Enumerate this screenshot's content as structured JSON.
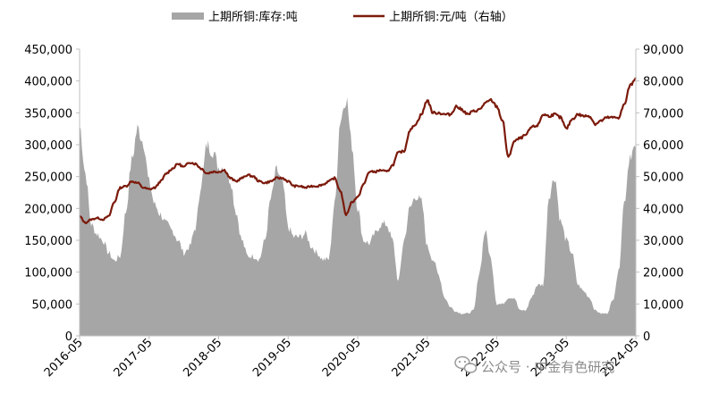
{
  "chart_data": {
    "type": "area",
    "legend": {
      "placement": "top",
      "inventory_label": "上期所铜:库存:吨",
      "price_label": "上期所铜:元/吨（右轴）"
    },
    "left_axis": {
      "range": [
        0,
        450000
      ],
      "tick_labels": [
        "0",
        "50,000",
        "100,000",
        "150,000",
        "200,000",
        "250,000",
        "300,000",
        "350,000",
        "400,000",
        "450,000"
      ]
    },
    "right_axis": {
      "range": [
        0,
        90000
      ],
      "tick_labels": [
        "0",
        "10,000",
        "20,000",
        "30,000",
        "40,000",
        "50,000",
        "60,000",
        "70,000",
        "80,000",
        "90,000"
      ]
    },
    "x_axis": {
      "range": [
        "2016-05",
        "2024-05"
      ],
      "tick_labels": [
        "2016-05",
        "2017-05",
        "2018-05",
        "2019-05",
        "2020-05",
        "2021-05",
        "2022-05",
        "2023-05",
        "2024-05"
      ]
    },
    "colors": {
      "inventory": "#a6a6a6",
      "price": "#7b1a0b"
    },
    "series": [
      {
        "name": "上期所铜:库存:吨",
        "axis": "left",
        "points": [
          [
            "2016-05",
            330000
          ],
          [
            "2016-06",
            255000
          ],
          [
            "2016-07",
            175000
          ],
          [
            "2016-08",
            160000
          ],
          [
            "2016-09",
            150000
          ],
          [
            "2016-10",
            130000
          ],
          [
            "2016-11",
            118000
          ],
          [
            "2016-12",
            125000
          ],
          [
            "2017-01",
            195000
          ],
          [
            "2017-02",
            275000
          ],
          [
            "2017-03",
            325000
          ],
          [
            "2017-04",
            305000
          ],
          [
            "2017-05",
            240000
          ],
          [
            "2017-06",
            205000
          ],
          [
            "2017-07",
            190000
          ],
          [
            "2017-08",
            175000
          ],
          [
            "2017-09",
            165000
          ],
          [
            "2017-10",
            150000
          ],
          [
            "2017-11",
            130000
          ],
          [
            "2017-12",
            140000
          ],
          [
            "2018-01",
            170000
          ],
          [
            "2018-02",
            240000
          ],
          [
            "2018-03",
            300000
          ],
          [
            "2018-04",
            290000
          ],
          [
            "2018-05",
            265000
          ],
          [
            "2018-06",
            265000
          ],
          [
            "2018-07",
            245000
          ],
          [
            "2018-08",
            195000
          ],
          [
            "2018-09",
            150000
          ],
          [
            "2018-10",
            125000
          ],
          [
            "2018-11",
            125000
          ],
          [
            "2018-12",
            120000
          ],
          [
            "2019-01",
            150000
          ],
          [
            "2019-02",
            215000
          ],
          [
            "2019-03",
            260000
          ],
          [
            "2019-04",
            240000
          ],
          [
            "2019-05",
            170000
          ],
          [
            "2019-06",
            155000
          ],
          [
            "2019-07",
            155000
          ],
          [
            "2019-08",
            160000
          ],
          [
            "2019-09",
            140000
          ],
          [
            "2019-10",
            130000
          ],
          [
            "2019-11",
            120000
          ],
          [
            "2019-12",
            120000
          ],
          [
            "2020-01",
            205000
          ],
          [
            "2020-02",
            340000
          ],
          [
            "2020-03",
            375000
          ],
          [
            "2020-04",
            300000
          ],
          [
            "2020-05",
            200000
          ],
          [
            "2020-06",
            150000
          ],
          [
            "2020-07",
            145000
          ],
          [
            "2020-08",
            160000
          ],
          [
            "2020-09",
            175000
          ],
          [
            "2020-10",
            175000
          ],
          [
            "2020-11",
            150000
          ],
          [
            "2020-12",
            85000
          ],
          [
            "2021-01",
            150000
          ],
          [
            "2021-02",
            200000
          ],
          [
            "2021-03",
            220000
          ],
          [
            "2021-04",
            210000
          ],
          [
            "2021-05",
            140000
          ],
          [
            "2021-06",
            120000
          ],
          [
            "2021-07",
            95000
          ],
          [
            "2021-08",
            60000
          ],
          [
            "2021-09",
            45000
          ],
          [
            "2021-10",
            38000
          ],
          [
            "2021-11",
            35000
          ],
          [
            "2021-12",
            35000
          ],
          [
            "2022-01",
            40000
          ],
          [
            "2022-02",
            100000
          ],
          [
            "2022-03",
            165000
          ],
          [
            "2022-04",
            120000
          ],
          [
            "2022-05",
            50000
          ],
          [
            "2022-06",
            50000
          ],
          [
            "2022-07",
            60000
          ],
          [
            "2022-08",
            60000
          ],
          [
            "2022-09",
            40000
          ],
          [
            "2022-10",
            40000
          ],
          [
            "2022-11",
            60000
          ],
          [
            "2022-12",
            80000
          ],
          [
            "2023-01",
            80000
          ],
          [
            "2023-02",
            220000
          ],
          [
            "2023-03",
            250000
          ],
          [
            "2023-04",
            180000
          ],
          [
            "2023-05",
            150000
          ],
          [
            "2023-06",
            130000
          ],
          [
            "2023-07",
            80000
          ],
          [
            "2023-08",
            70000
          ],
          [
            "2023-09",
            60000
          ],
          [
            "2023-10",
            40000
          ],
          [
            "2023-11",
            35000
          ],
          [
            "2023-12",
            35000
          ],
          [
            "2024-01",
            55000
          ],
          [
            "2024-02",
            100000
          ],
          [
            "2024-03",
            210000
          ],
          [
            "2024-04",
            285000
          ],
          [
            "2024-05",
            295000
          ]
        ]
      },
      {
        "name": "上期所铜:元/吨（右轴）",
        "axis": "right",
        "points": [
          [
            "2016-05",
            37500
          ],
          [
            "2016-06",
            35500
          ],
          [
            "2016-07",
            36500
          ],
          [
            "2016-08",
            37000
          ],
          [
            "2016-09",
            36500
          ],
          [
            "2016-10",
            37500
          ],
          [
            "2016-11",
            42000
          ],
          [
            "2016-12",
            46500
          ],
          [
            "2017-01",
            47000
          ],
          [
            "2017-02",
            48500
          ],
          [
            "2017-03",
            48000
          ],
          [
            "2017-04",
            46500
          ],
          [
            "2017-05",
            46000
          ],
          [
            "2017-06",
            46500
          ],
          [
            "2017-07",
            48500
          ],
          [
            "2017-08",
            51000
          ],
          [
            "2017-09",
            52500
          ],
          [
            "2017-10",
            54000
          ],
          [
            "2017-11",
            53000
          ],
          [
            "2017-12",
            54500
          ],
          [
            "2018-01",
            54000
          ],
          [
            "2018-02",
            52500
          ],
          [
            "2018-03",
            51000
          ],
          [
            "2018-04",
            51500
          ],
          [
            "2018-05",
            51500
          ],
          [
            "2018-06",
            52000
          ],
          [
            "2018-07",
            49500
          ],
          [
            "2018-08",
            48500
          ],
          [
            "2018-09",
            49500
          ],
          [
            "2018-10",
            50500
          ],
          [
            "2018-11",
            50000
          ],
          [
            "2018-12",
            48500
          ],
          [
            "2019-01",
            48000
          ],
          [
            "2019-02",
            48500
          ],
          [
            "2019-03",
            49500
          ],
          [
            "2019-04",
            49500
          ],
          [
            "2019-05",
            48500
          ],
          [
            "2019-06",
            47000
          ],
          [
            "2019-07",
            47000
          ],
          [
            "2019-08",
            46500
          ],
          [
            "2019-09",
            47000
          ],
          [
            "2019-10",
            47000
          ],
          [
            "2019-11",
            47500
          ],
          [
            "2019-12",
            48500
          ],
          [
            "2020-01",
            49500
          ],
          [
            "2020-02",
            45500
          ],
          [
            "2020-03",
            38000
          ],
          [
            "2020-04",
            42000
          ],
          [
            "2020-05",
            43500
          ],
          [
            "2020-06",
            47500
          ],
          [
            "2020-07",
            51500
          ],
          [
            "2020-08",
            51500
          ],
          [
            "2020-09",
            52000
          ],
          [
            "2020-10",
            51500
          ],
          [
            "2020-11",
            53500
          ],
          [
            "2020-12",
            57500
          ],
          [
            "2021-01",
            58000
          ],
          [
            "2021-02",
            64500
          ],
          [
            "2021-03",
            66500
          ],
          [
            "2021-04",
            69500
          ],
          [
            "2021-05",
            74000
          ],
          [
            "2021-06",
            70000
          ],
          [
            "2021-07",
            70000
          ],
          [
            "2021-08",
            69500
          ],
          [
            "2021-09",
            69500
          ],
          [
            "2021-10",
            72000
          ],
          [
            "2021-11",
            71000
          ],
          [
            "2021-12",
            69500
          ],
          [
            "2022-01",
            70500
          ],
          [
            "2022-02",
            71000
          ],
          [
            "2022-03",
            73000
          ],
          [
            "2022-04",
            74000
          ],
          [
            "2022-05",
            72000
          ],
          [
            "2022-06",
            67500
          ],
          [
            "2022-07",
            56000
          ],
          [
            "2022-08",
            61000
          ],
          [
            "2022-09",
            62000
          ],
          [
            "2022-10",
            63000
          ],
          [
            "2022-11",
            65500
          ],
          [
            "2022-12",
            66000
          ],
          [
            "2023-01",
            69500
          ],
          [
            "2023-02",
            69000
          ],
          [
            "2023-03",
            69500
          ],
          [
            "2023-04",
            68500
          ],
          [
            "2023-05",
            65000
          ],
          [
            "2023-06",
            68000
          ],
          [
            "2023-07",
            69500
          ],
          [
            "2023-08",
            69000
          ],
          [
            "2023-09",
            69000
          ],
          [
            "2023-10",
            66500
          ],
          [
            "2023-11",
            67500
          ],
          [
            "2023-12",
            68500
          ],
          [
            "2024-01",
            68500
          ],
          [
            "2024-02",
            68500
          ],
          [
            "2024-03",
            72500
          ],
          [
            "2024-04",
            78500
          ],
          [
            "2024-05",
            81000
          ]
        ]
      }
    ]
  },
  "watermark": {
    "icon": "wechat-icon",
    "text": "公众号 · 中金有色研究"
  }
}
